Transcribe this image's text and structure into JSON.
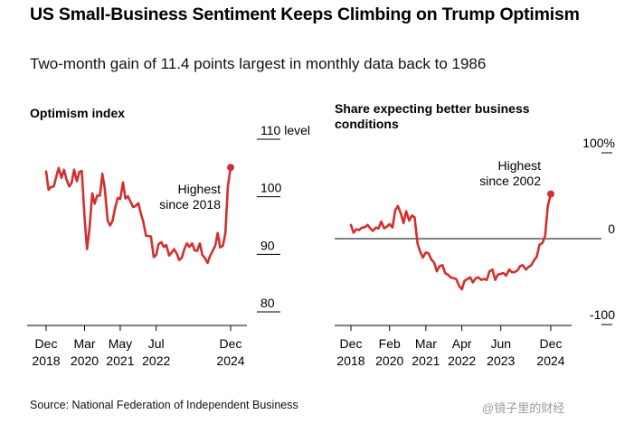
{
  "header": {
    "title": "US Small-Business Sentiment Keeps Climbing on Trump Optimism",
    "subtitle": "Two-month gain of 11.4 points largest in monthly data back to 1986"
  },
  "footer": {
    "source": "Source: National Federation of Independent Business",
    "watermark": "@镜子里的财经"
  },
  "colors": {
    "line": "#d32f2f",
    "grid": "#000000"
  },
  "chart_data": [
    {
      "type": "line",
      "title": "Optimism index",
      "ylim": [
        80,
        110
      ],
      "yticks": [
        {
          "value": 110,
          "label": "110 level"
        },
        {
          "value": 100,
          "label": "100"
        },
        {
          "value": 90,
          "label": "90"
        },
        {
          "value": 80,
          "label": "80"
        }
      ],
      "xlim": [
        2018.92,
        2024.92
      ],
      "xticks": [
        {
          "value": 2018.92,
          "label": [
            "Dec",
            "2018"
          ]
        },
        {
          "value": 2020.17,
          "label": [
            "Mar",
            "2020"
          ]
        },
        {
          "value": 2021.33,
          "label": [
            "May",
            "2021"
          ]
        },
        {
          "value": 2022.5,
          "label": [
            "Jul",
            "2022"
          ]
        },
        {
          "value": 2024.92,
          "label": [
            "Dec",
            "2024"
          ]
        }
      ],
      "annotation": {
        "text": [
          "Highest",
          "since 2018"
        ],
        "x": 2024.92,
        "y": 105.1
      },
      "x": [
        2018.92,
        2019.0,
        2019.08,
        2019.17,
        2019.25,
        2019.33,
        2019.42,
        2019.5,
        2019.58,
        2019.67,
        2019.75,
        2019.83,
        2019.92,
        2020.0,
        2020.08,
        2020.17,
        2020.25,
        2020.33,
        2020.42,
        2020.5,
        2020.58,
        2020.67,
        2020.75,
        2020.83,
        2020.92,
        2021.0,
        2021.08,
        2021.17,
        2021.25,
        2021.33,
        2021.42,
        2021.5,
        2021.58,
        2021.67,
        2021.75,
        2021.83,
        2021.92,
        2022.0,
        2022.08,
        2022.17,
        2022.25,
        2022.33,
        2022.42,
        2022.5,
        2022.58,
        2022.67,
        2022.75,
        2022.83,
        2022.92,
        2023.0,
        2023.08,
        2023.17,
        2023.25,
        2023.33,
        2023.42,
        2023.5,
        2023.58,
        2023.67,
        2023.75,
        2023.83,
        2023.92,
        2024.0,
        2024.08,
        2024.17,
        2024.25,
        2024.33,
        2024.42,
        2024.5,
        2024.58,
        2024.67,
        2024.75,
        2024.83,
        2024.92
      ],
      "values": [
        104.4,
        101.2,
        101.7,
        101.8,
        103.5,
        105.0,
        103.3,
        104.7,
        103.1,
        101.8,
        102.4,
        104.7,
        102.7,
        104.3,
        104.5,
        96.4,
        90.9,
        94.4,
        100.6,
        98.8,
        100.2,
        100.2,
        104.0,
        101.4,
        95.9,
        95.0,
        95.8,
        98.2,
        99.8,
        99.6,
        102.5,
        99.7,
        100.1,
        99.1,
        98.2,
        98.4,
        98.9,
        97.1,
        95.7,
        93.2,
        93.2,
        93.1,
        89.5,
        89.9,
        91.8,
        92.1,
        91.3,
        91.6,
        89.8,
        90.3,
        90.9,
        90.1,
        89.0,
        89.4,
        91.0,
        91.9,
        91.3,
        91.9,
        90.7,
        90.6,
        91.9,
        89.9,
        89.4,
        88.5,
        89.7,
        90.5,
        91.5,
        93.7,
        91.2,
        91.5,
        93.7,
        101.7,
        105.1
      ]
    },
    {
      "type": "line",
      "title": "Share expecting better business conditions",
      "ylim": [
        -100,
        100
      ],
      "yticks": [
        {
          "value": 100,
          "label": "100%"
        },
        {
          "value": 0,
          "label": "0"
        },
        {
          "value": -100,
          "label": "-100"
        }
      ],
      "xlim": [
        2018.92,
        2024.92
      ],
      "xticks": [
        {
          "value": 2018.92,
          "label": [
            "Dec",
            "2018"
          ]
        },
        {
          "value": 2020.08,
          "label": [
            "Feb",
            "2020"
          ]
        },
        {
          "value": 2021.17,
          "label": [
            "Mar",
            "2021"
          ]
        },
        {
          "value": 2022.25,
          "label": [
            "Apr",
            "2022"
          ]
        },
        {
          "value": 2023.42,
          "label": [
            "Jun",
            "2023"
          ]
        },
        {
          "value": 2024.92,
          "label": [
            "Dec",
            "2024"
          ]
        }
      ],
      "annotation": {
        "text": [
          "Highest",
          "since 2002"
        ],
        "x": 2024.92,
        "y": 52
      },
      "x": [
        2018.92,
        2019.0,
        2019.08,
        2019.17,
        2019.25,
        2019.33,
        2019.42,
        2019.5,
        2019.58,
        2019.67,
        2019.75,
        2019.83,
        2019.92,
        2020.0,
        2020.08,
        2020.17,
        2020.25,
        2020.33,
        2020.42,
        2020.5,
        2020.58,
        2020.67,
        2020.75,
        2020.83,
        2020.92,
        2021.0,
        2021.08,
        2021.17,
        2021.25,
        2021.33,
        2021.42,
        2021.5,
        2021.58,
        2021.67,
        2021.75,
        2021.83,
        2021.92,
        2022.0,
        2022.08,
        2022.17,
        2022.25,
        2022.33,
        2022.42,
        2022.5,
        2022.58,
        2022.67,
        2022.75,
        2022.83,
        2022.92,
        2023.0,
        2023.08,
        2023.17,
        2023.25,
        2023.33,
        2023.42,
        2023.5,
        2023.58,
        2023.67,
        2023.75,
        2023.83,
        2023.92,
        2024.0,
        2024.08,
        2024.17,
        2024.25,
        2024.33,
        2024.42,
        2024.5,
        2024.58,
        2024.67,
        2024.75,
        2024.83,
        2024.92
      ],
      "values": [
        16,
        7,
        11,
        10,
        13,
        13,
        16,
        12,
        9,
        13,
        12,
        20,
        12,
        14,
        17,
        13,
        33,
        38,
        29,
        18,
        32,
        21,
        27,
        25,
        -6,
        -15,
        -22,
        -16,
        -17,
        -24,
        -28,
        -38,
        -32,
        -31,
        -40,
        -42,
        -45,
        -46,
        -47,
        -55,
        -59,
        -49,
        -47,
        -45,
        -51,
        -46,
        -45,
        -48,
        -47,
        -48,
        -38,
        -36,
        -48,
        -42,
        -41,
        -40,
        -43,
        -36,
        -39,
        -39,
        -37,
        -32,
        -31,
        -36,
        -33,
        -31,
        -25,
        -21,
        -7,
        -5,
        3,
        38,
        52
      ]
    }
  ]
}
